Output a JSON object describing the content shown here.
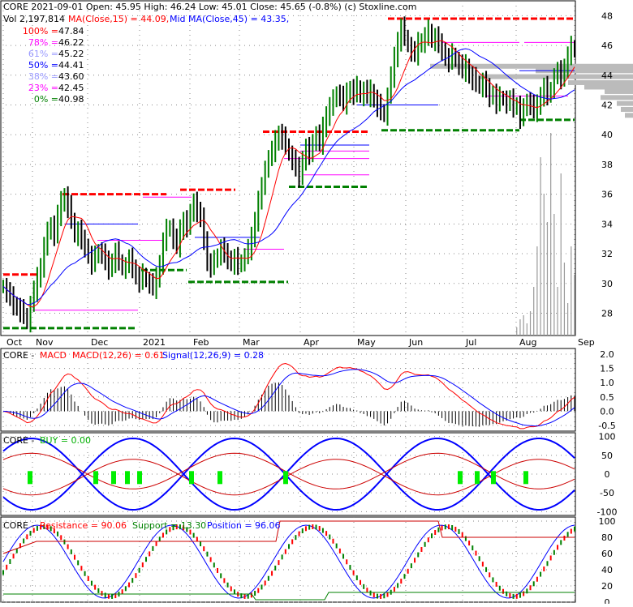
{
  "header": {
    "symbol": "CORE",
    "date": "2021-09-01",
    "ohlc_text": "CORE  2021-09-01 Open: 45.95  High: 46.24  Low: 45.01  Close: 45.65 (-0.8%)  (c) Stoxline.com",
    "vol_text": "Vol 2,197,814",
    "ma15_text": "MA(Close,15) = 44.09,",
    "ma45_text": "Mid MA(Close,45) = 43.35,"
  },
  "colors": {
    "price_up": "#008000",
    "price_down": "#000000",
    "ma15": "#ff0000",
    "ma45": "#0000ff",
    "resistance": "#ff0000",
    "support": "#008000",
    "grid": "#888888",
    "fib": "#ff00ff",
    "volume": "#999999"
  },
  "fib_levels": [
    {
      "label": "100% = 47.84",
      "color": "#ff0000"
    },
    {
      "label": "78% = 46.22",
      "color": "#ff00ff"
    },
    {
      "label": "61% = 45.22",
      "color": "#9999ff"
    },
    {
      "label": "50% = 44.41",
      "color": "#0000ff"
    },
    {
      "label": "38% = 43.60",
      "color": "#9999ff"
    },
    {
      "label": "23% = 42.45",
      "color": "#ff00ff"
    },
    {
      "label": "0% = 40.98",
      "color": "#008000"
    }
  ],
  "chart_data": [
    {
      "type": "candlestick",
      "title": "CORE price",
      "x_labels": [
        "Oct",
        "Nov",
        "Dec",
        "2021",
        "Feb",
        "Mar",
        "Apr",
        "May",
        "Jun",
        "Jul",
        "Aug",
        "Sep"
      ],
      "ylim": [
        26.5,
        49
      ],
      "y_ticks": [
        28,
        30,
        32,
        34,
        36,
        38,
        40,
        42,
        44,
        46,
        48
      ],
      "close_series": [
        29.8,
        29.4,
        29.0,
        28.6,
        28.4,
        28.2,
        27.9,
        27.4,
        28.6,
        29.5,
        30.3,
        31.2,
        32.5,
        33.4,
        34.0,
        33.2,
        34.6,
        35.4,
        35.9,
        35.2,
        34.3,
        33.2,
        33.6,
        32.8,
        32.5,
        31.9,
        31.4,
        31.8,
        32.2,
        32.0,
        31.4,
        31.0,
        31.5,
        32.1,
        31.5,
        31.0,
        31.2,
        31.6,
        31.1,
        30.5,
        30.2,
        30.6,
        30.2,
        30.0,
        29.7,
        30.3,
        31.4,
        32.8,
        33.6,
        33.8,
        33.0,
        32.5,
        33.5,
        34.3,
        33.9,
        34.6,
        35.6,
        34.8,
        34.3,
        33.0,
        31.4,
        31.2,
        31.5,
        31.9,
        32.4,
        31.9,
        31.7,
        31.4,
        31.7,
        31.2,
        31.5,
        31.8,
        32.3,
        33.0,
        34.3,
        35.6,
        36.4,
        37.8,
        38.4,
        38.9,
        39.5,
        40.1,
        39.8,
        39.3,
        38.7,
        38.3,
        37.7,
        37.2,
        38.4,
        39.1,
        38.6,
        39.6,
        40.0,
        39.4,
        40.4,
        41.4,
        41.9,
        42.3,
        42.8,
        42.6,
        42.1,
        42.7,
        43.1,
        42.8,
        43.2,
        42.6,
        43.0,
        42.6,
        42.9,
        42.4,
        42.0,
        41.6,
        41.3,
        42.6,
        43.9,
        45.1,
        46.4,
        47.2,
        46.6,
        46.0,
        45.6,
        45.4,
        46.1,
        46.3,
        46.6,
        47.0,
        46.3,
        46.6,
        46.0,
        45.7,
        45.2,
        45.0,
        45.4,
        45.0,
        44.7,
        44.3,
        44.6,
        44.0,
        43.8,
        43.5,
        43.2,
        43.6,
        43.0,
        42.6,
        42.8,
        42.2,
        42.5,
        42.4,
        42.1,
        42.3,
        41.9,
        42.0,
        41.2,
        41.7,
        42.3,
        42.0,
        41.6,
        41.9,
        42.7,
        43.2,
        42.6,
        43.1,
        43.9,
        44.2,
        43.8,
        44.6,
        45.3,
        45.9,
        45.65
      ],
      "ma15": 44.09,
      "ma45": 43.35,
      "volume_last": 2197814
    },
    {
      "type": "line",
      "title": "CORE - MACD",
      "legend": [
        "MACD(12,26) = 0.61",
        "Signal(12,26,9) = 0.28"
      ],
      "ylim": [
        -0.7,
        2.2
      ],
      "y_ticks": [
        "2.0",
        "1.5",
        "1.0",
        "0.5",
        "0.0",
        "-0.5"
      ],
      "macd_last": 0.61,
      "signal_last": 0.28
    },
    {
      "type": "line",
      "title": "CORE - BUY",
      "legend": [
        "BUY = 0.00"
      ],
      "ylim": [
        -110,
        110
      ],
      "y_ticks": [
        "100",
        "50",
        "0",
        "-50",
        "-100"
      ],
      "buy_last": 0.0
    },
    {
      "type": "line",
      "title": "CORE - Resistance",
      "legend": [
        "Resistance = 90.06",
        "Support = 13.30",
        "Position = 96.06"
      ],
      "ylim": [
        0,
        105
      ],
      "y_ticks": [
        "100",
        "80",
        "60",
        "40",
        "20",
        "0"
      ],
      "resistance": 90.06,
      "support": 13.3,
      "position": 96.06
    }
  ]
}
